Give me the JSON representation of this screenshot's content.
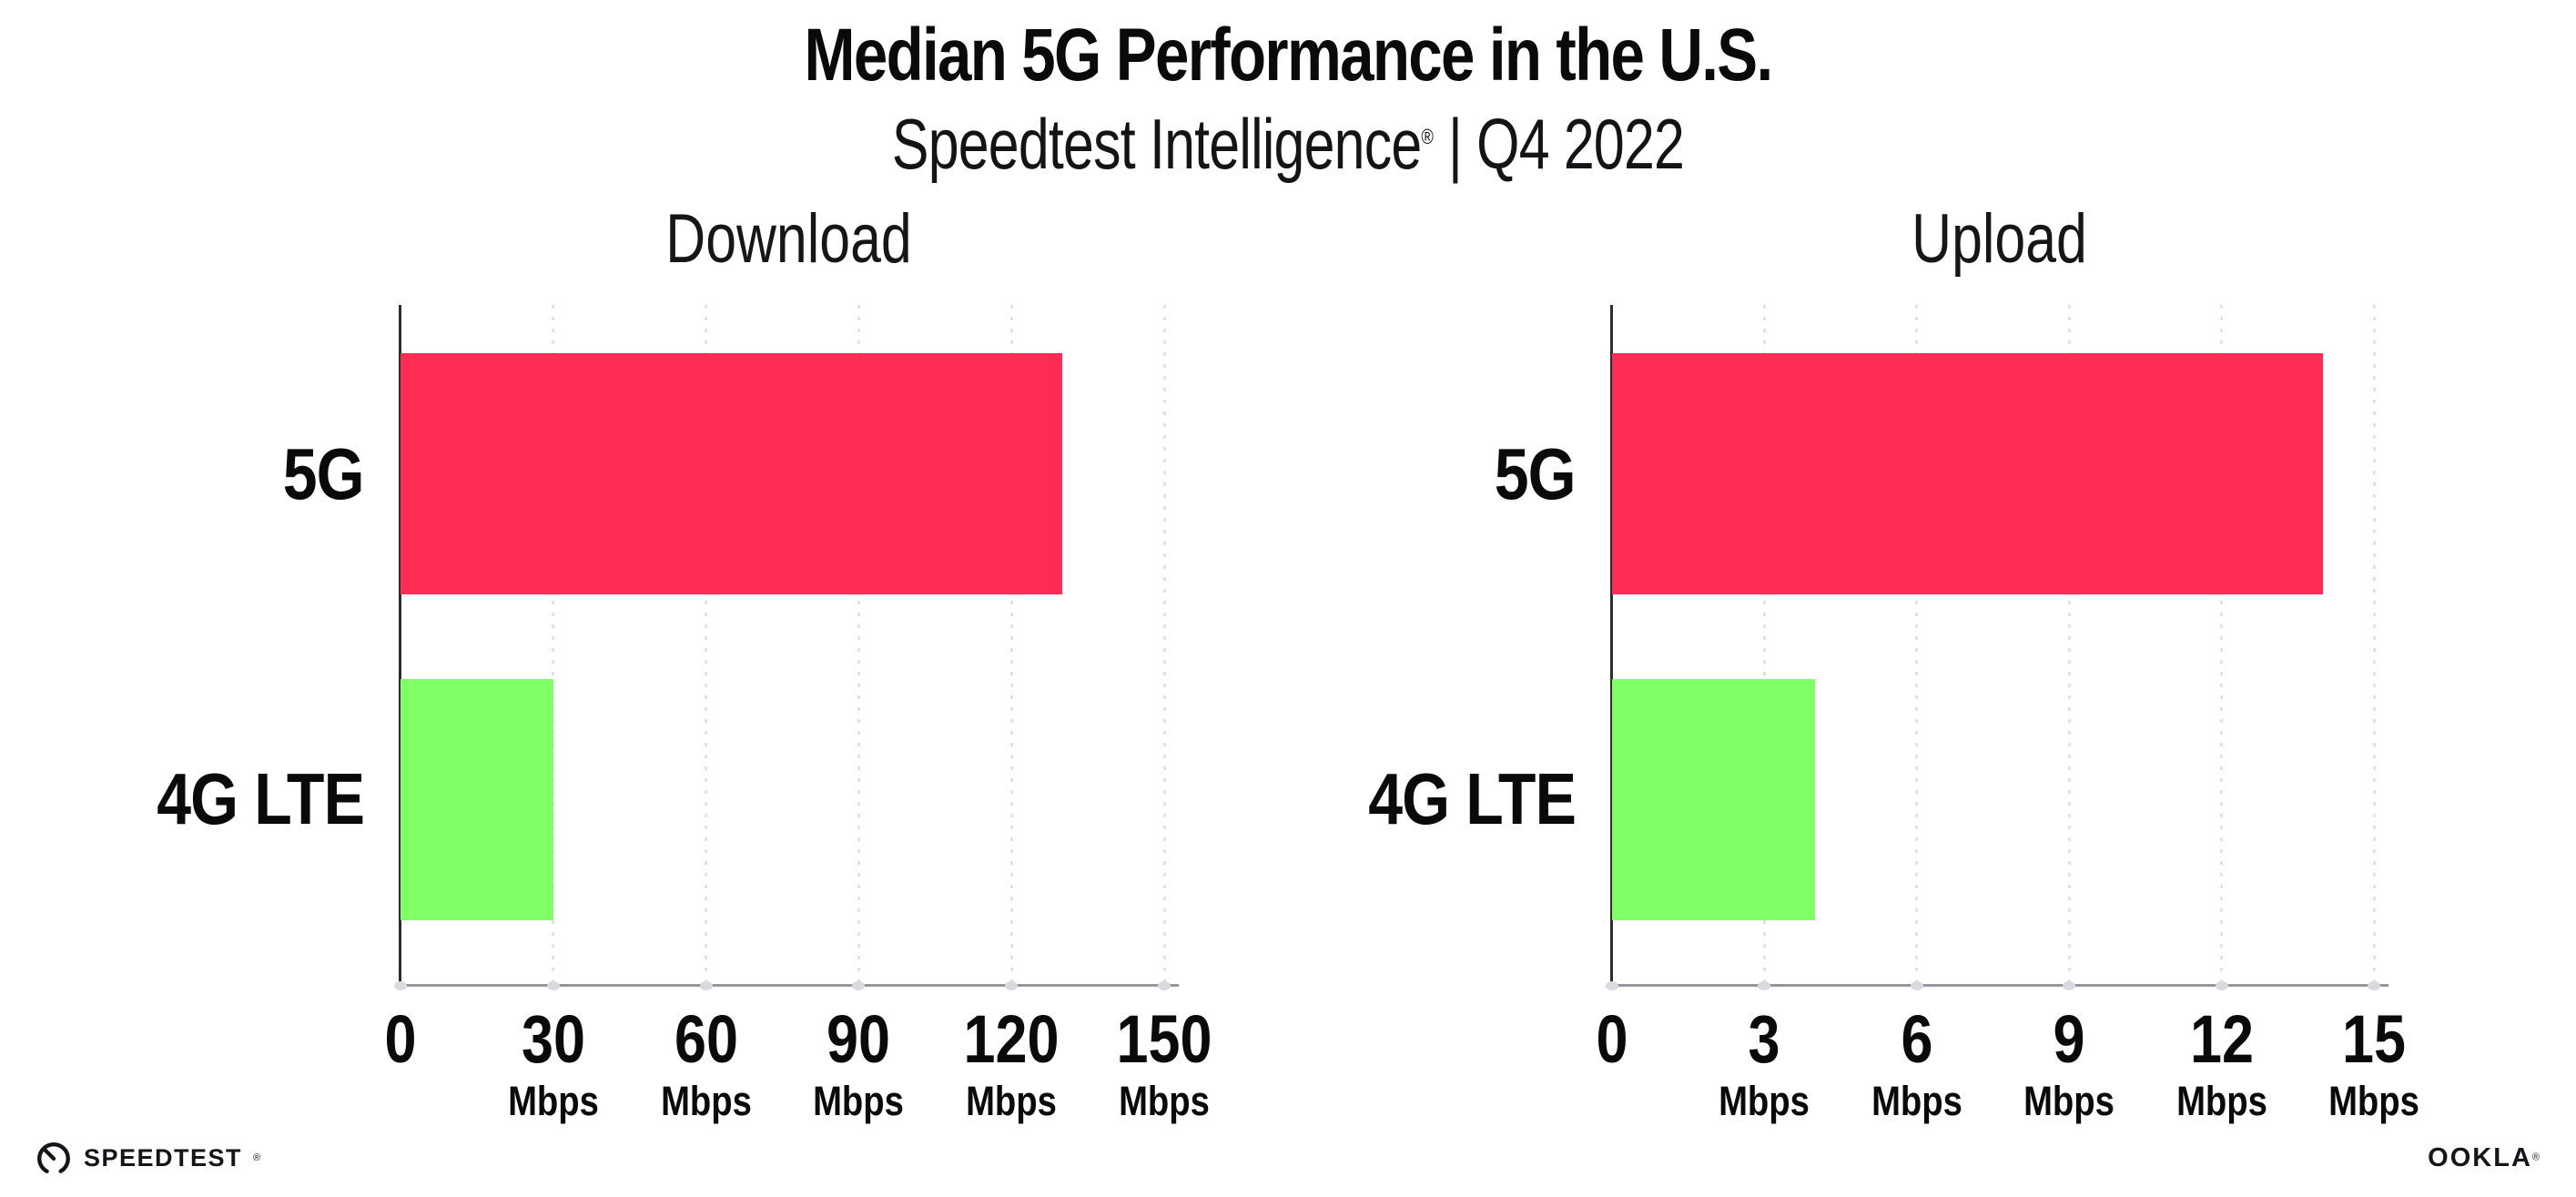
{
  "header": {
    "title": "Median 5G Performance in the U.S.",
    "subtitle_brand": "Speedtest Intelligence",
    "subtitle_reg": "®",
    "subtitle_sep": " | ",
    "subtitle_period": "Q4 2022"
  },
  "chart_data": [
    {
      "type": "bar",
      "orientation": "horizontal",
      "title": "Download",
      "categories": [
        "5G",
        "4G LTE"
      ],
      "values": [
        130,
        30
      ],
      "unit": "Mbps",
      "xticks": [
        0,
        30,
        60,
        90,
        120,
        150
      ],
      "xlim": [
        0,
        152.5
      ],
      "bar_colors": [
        "#FF2D55",
        "#80FF66"
      ],
      "grid": true,
      "legend": "none"
    },
    {
      "type": "bar",
      "orientation": "horizontal",
      "title": "Upload",
      "categories": [
        "5G",
        "4G LTE"
      ],
      "values": [
        14,
        4
      ],
      "unit": "Mbps",
      "xticks": [
        0,
        3,
        6,
        9,
        12,
        15
      ],
      "xlim": [
        0,
        15.25
      ],
      "bar_colors": [
        "#FF2D55",
        "#80FF66"
      ],
      "grid": true,
      "legend": "none"
    }
  ],
  "footer": {
    "speedtest_label": "SPEEDTEST",
    "speedtest_reg": "®",
    "ookla_label": "OOKLA",
    "ookla_reg": "®"
  },
  "colors": {
    "bar_5g": "#FF2D55",
    "bar_4g_lte": "#80FF66",
    "axis_y": "#2c2c31",
    "axis_x": "#96969c",
    "gridline": "#e1e1e8",
    "text": "#0a0a0b",
    "background": "#ffffff"
  }
}
